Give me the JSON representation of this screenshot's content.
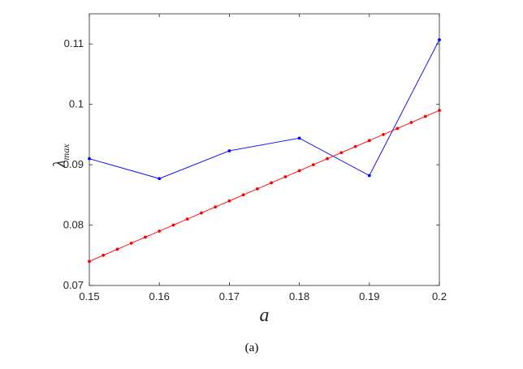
{
  "chart_data": {
    "type": "line",
    "xlabel": "a",
    "ylabel": "λ",
    "ylabel_subscript": "max",
    "caption": "(a)",
    "xlim": [
      0.15,
      0.2
    ],
    "ylim": [
      0.07,
      0.115
    ],
    "xticks": [
      "0.15",
      "0.16",
      "0.17",
      "0.18",
      "0.19",
      "0.2"
    ],
    "yticks": [
      "0.07",
      "0.08",
      "0.09",
      "0.1",
      "0.11"
    ],
    "grid": false,
    "series": [
      {
        "color": "#0000ff",
        "x": [
          0.15,
          0.16,
          0.17,
          0.18,
          0.19,
          0.2
        ],
        "y": [
          0.091,
          0.0877,
          0.0923,
          0.0944,
          0.0882,
          0.1107
        ]
      },
      {
        "color": "#ff0000",
        "x": [
          0.15,
          0.152,
          0.154,
          0.156,
          0.158,
          0.16,
          0.162,
          0.164,
          0.166,
          0.168,
          0.17,
          0.172,
          0.174,
          0.176,
          0.178,
          0.18,
          0.182,
          0.184,
          0.186,
          0.188,
          0.19,
          0.192,
          0.194,
          0.196,
          0.198,
          0.2
        ],
        "y": [
          0.074,
          0.075,
          0.076,
          0.077,
          0.078,
          0.079,
          0.08,
          0.081,
          0.082,
          0.083,
          0.084,
          0.085,
          0.086,
          0.087,
          0.088,
          0.089,
          0.09,
          0.091,
          0.092,
          0.093,
          0.094,
          0.095,
          0.096,
          0.097,
          0.098,
          0.099
        ]
      }
    ]
  }
}
